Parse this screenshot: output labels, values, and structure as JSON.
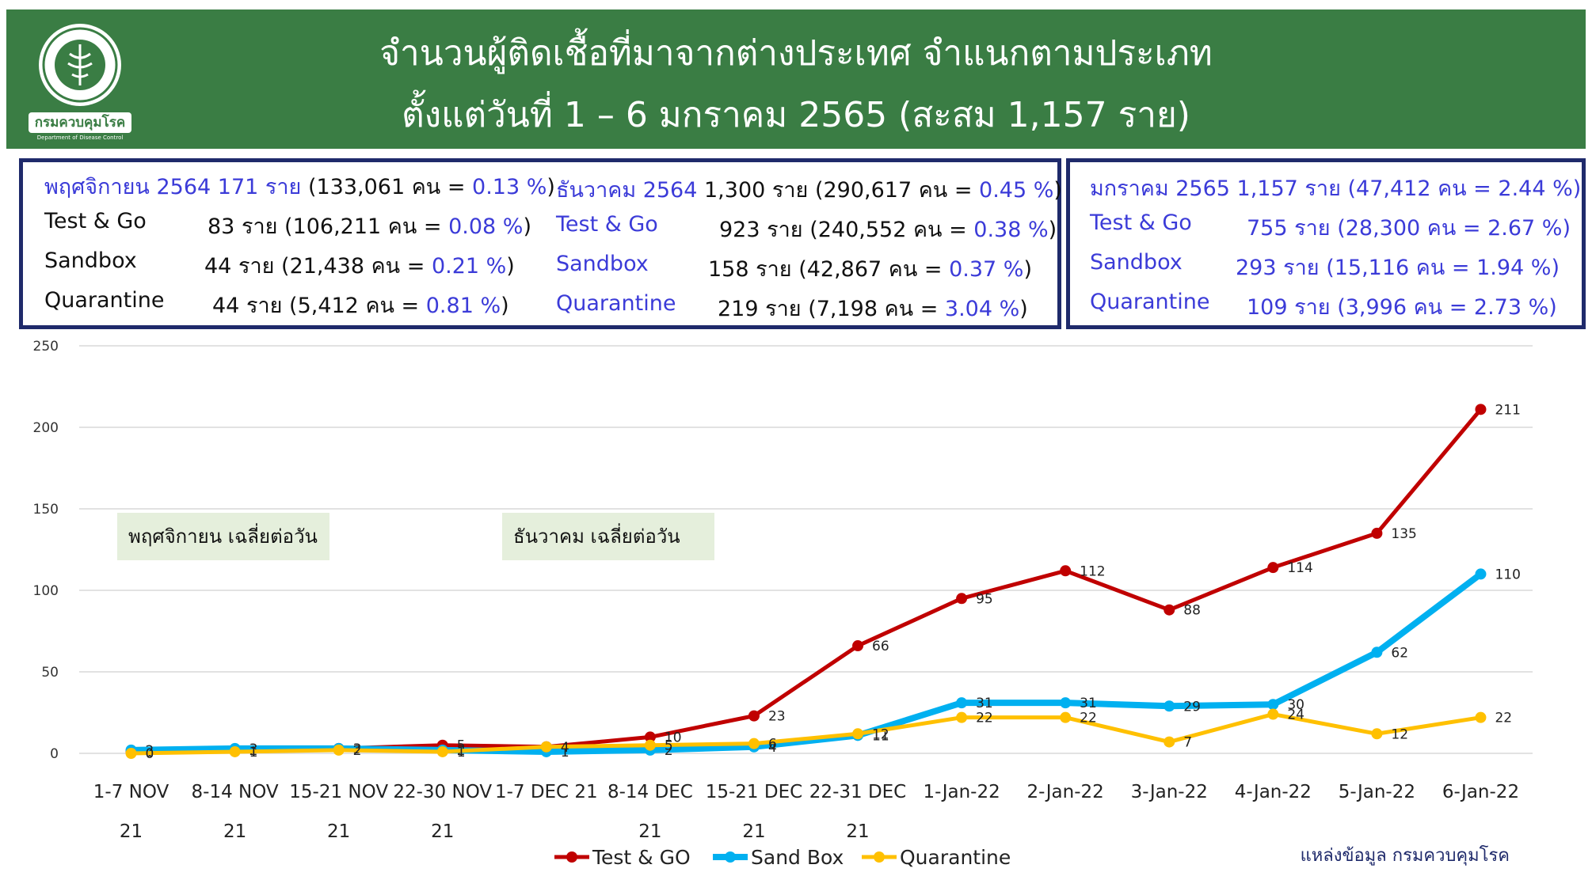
{
  "header": {
    "title_line1": "จำนวนผู้ติดเชื้อที่มาจากต่างประเทศ จำแนกตามประเภท",
    "title_line2": "ตั้งแต่วันที่  1 – 6  มกราคม  2565 (สะสม 1,157 ราย)",
    "logo_text": "กรมควบคุมโรค",
    "logo_subtext": "Department of Disease Control",
    "bg_color": "#3a7d44"
  },
  "summary": {
    "nov": {
      "head": {
        "label": "พฤศจิกายน 2564  171 ราย",
        "mid": " (133,061 คน = ",
        "pct": "0.13 %",
        "end": ")"
      },
      "rows": [
        {
          "name": "Test & Go",
          "count": "83  ราย",
          "detail": "(106,211 คน = ",
          "pct": "0.08 %",
          "end": ")"
        },
        {
          "name": "Sandbox",
          "count": "44  ราย",
          "detail": "(21,438 คน  = ",
          "pct": "0.21 %",
          "end": ")"
        },
        {
          "name": "Quarantine",
          "count": "44  ราย",
          "detail": "(5,412 คน   = ",
          "pct": "0.81 %",
          "end": ")"
        }
      ]
    },
    "dec": {
      "head": {
        "label": "ธันวาคม 2564",
        "mid": "  1,300 ราย (290,617 คน = ",
        "pct": "0.45 %",
        "end": ")"
      },
      "rows": [
        {
          "name": "Test & Go",
          "count": "923  ราย",
          "detail": "(240,552 คน = ",
          "pct": "0.38 %",
          "end": ")"
        },
        {
          "name": "Sandbox",
          "count": "158  ราย",
          "detail": "(42,867 คน   = ",
          "pct": "0.37 %",
          "end": ")"
        },
        {
          "name": "Quarantine",
          "count": "219  ราย",
          "detail": "(7,198 คน    = ",
          "pct": "3.04 %",
          "end": ")"
        }
      ]
    },
    "jan": {
      "head": {
        "label": "มกราคม 2565 1,157 ราย (47,412 คน = ",
        "pct": "2.44 %",
        "end": ")"
      },
      "rows": [
        {
          "name": "Test & Go",
          "count": "755 ราย",
          "detail": "(28,300 คน = ",
          "pct": "2.67 %",
          "end": ")"
        },
        {
          "name": "Sandbox",
          "count": "293 ราย",
          "detail": "(15,116 คน = ",
          "pct": "1.94 %",
          "end": ")"
        },
        {
          "name": "Quarantine",
          "count": "109 ราย",
          "detail": "(3,996 คน   = ",
          "pct": "2.73 %",
          "end": ")"
        }
      ]
    }
  },
  "annotations": {
    "nov_avg": "พฤศจิกายน เฉลี่ยต่อวัน",
    "dec_avg": "ธันวาคม เฉลี่ยต่อวัน"
  },
  "source": "แหล่งข้อมูล  กรมควบคุมโรค",
  "chart_data": {
    "type": "line",
    "ylim": [
      0,
      250
    ],
    "yticks": [
      0,
      50,
      100,
      150,
      200,
      250
    ],
    "grid": true,
    "legend": "bottom-center",
    "categories": [
      "1-7 NOV 21",
      "8-14 NOV 21",
      "15-21 NOV 21",
      "22-30 NOV 21",
      "1-7 DEC 21",
      "8-14 DEC 21",
      "15-21 DEC 21",
      "22-31 DEC 21",
      "1-Jan-22",
      "2-Jan-22",
      "3-Jan-22",
      "4-Jan-22",
      "5-Jan-22",
      "6-Jan-22"
    ],
    "category_lines": [
      [
        "1-7 NOV",
        "21"
      ],
      [
        "8-14 NOV",
        "21"
      ],
      [
        "15-21 NOV",
        "21"
      ],
      [
        "22-30 NOV",
        "21"
      ],
      [
        "1-7 DEC 21",
        ""
      ],
      [
        "8-14 DEC",
        "21"
      ],
      [
        "15-21 DEC",
        "21"
      ],
      [
        "22-31 DEC",
        "21"
      ],
      [
        "1-Jan-22",
        ""
      ],
      [
        "2-Jan-22",
        ""
      ],
      [
        "3-Jan-22",
        ""
      ],
      [
        "4-Jan-22",
        ""
      ],
      [
        "5-Jan-22",
        ""
      ],
      [
        "6-Jan-22",
        ""
      ]
    ],
    "series": [
      {
        "name": "Test & GO",
        "color": "#c00000",
        "values": [
          1,
          2,
          3,
          5,
          4,
          10,
          23,
          66,
          95,
          112,
          88,
          114,
          135,
          211
        ]
      },
      {
        "name": "Sand Box",
        "color": "#00b0f0",
        "values": [
          2,
          3,
          3,
          2,
          1,
          2,
          4,
          11,
          31,
          31,
          29,
          30,
          62,
          110
        ]
      },
      {
        "name": "Quarantine",
        "color": "#ffc000",
        "values": [
          0,
          1,
          2,
          1,
          4,
          5,
          6,
          12,
          22,
          22,
          7,
          24,
          12,
          22
        ]
      }
    ]
  }
}
